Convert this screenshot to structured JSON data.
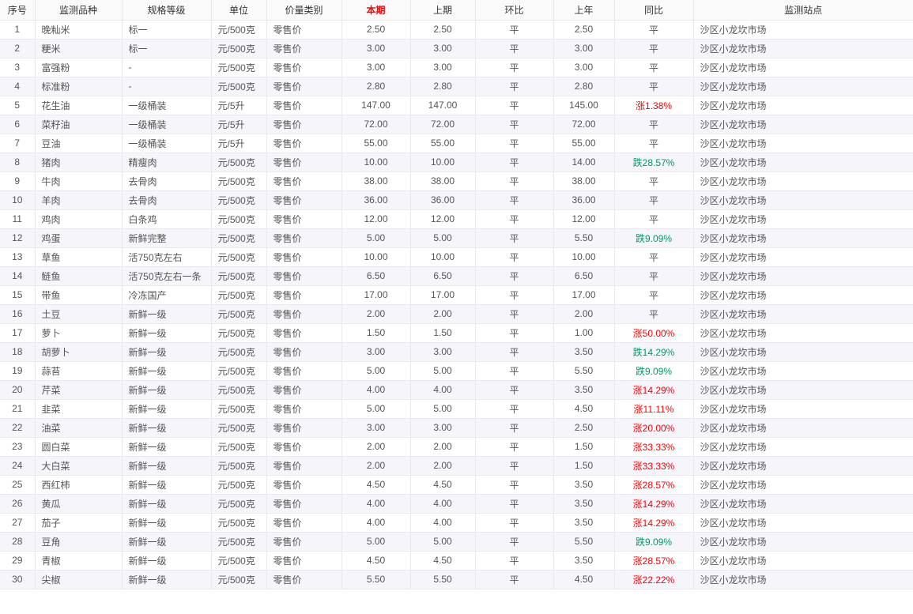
{
  "colors": {
    "up": "#ff0000",
    "down": "#009966",
    "border": "#e9e9e9",
    "row_alt_bg": "#f6f5fb",
    "header_bg": "#fafafa",
    "text": "#555555",
    "header_text": "#333333"
  },
  "table": {
    "columns": [
      {
        "key": "index",
        "label": "序号"
      },
      {
        "key": "variety",
        "label": "监测品种"
      },
      {
        "key": "spec",
        "label": "规格等级"
      },
      {
        "key": "unit",
        "label": "单位"
      },
      {
        "key": "price_type",
        "label": "价量类别"
      },
      {
        "key": "current",
        "label": "本期",
        "highlight": true
      },
      {
        "key": "previous",
        "label": "上期"
      },
      {
        "key": "mom",
        "label": "环比"
      },
      {
        "key": "last_year",
        "label": "上年"
      },
      {
        "key": "yoy",
        "label": "同比"
      },
      {
        "key": "station",
        "label": "监测站点"
      }
    ],
    "rows": [
      [
        "1",
        "晚籼米",
        "标一",
        "元/500克",
        "零售价",
        "2.50",
        "2.50",
        "平",
        "2.50",
        "平",
        "沙区小龙坎市场"
      ],
      [
        "2",
        "粳米",
        "标一",
        "元/500克",
        "零售价",
        "3.00",
        "3.00",
        "平",
        "3.00",
        "平",
        "沙区小龙坎市场"
      ],
      [
        "3",
        "富强粉",
        "-",
        "元/500克",
        "零售价",
        "3.00",
        "3.00",
        "平",
        "3.00",
        "平",
        "沙区小龙坎市场"
      ],
      [
        "4",
        "标准粉",
        "-",
        "元/500克",
        "零售价",
        "2.80",
        "2.80",
        "平",
        "2.80",
        "平",
        "沙区小龙坎市场"
      ],
      [
        "5",
        "花生油",
        "一级桶装",
        "元/5升",
        "零售价",
        "147.00",
        "147.00",
        "平",
        "145.00",
        "涨1.38%",
        "沙区小龙坎市场"
      ],
      [
        "6",
        "菜籽油",
        "一级桶装",
        "元/5升",
        "零售价",
        "72.00",
        "72.00",
        "平",
        "72.00",
        "平",
        "沙区小龙坎市场"
      ],
      [
        "7",
        "豆油",
        "一级桶装",
        "元/5升",
        "零售价",
        "55.00",
        "55.00",
        "平",
        "55.00",
        "平",
        "沙区小龙坎市场"
      ],
      [
        "8",
        "猪肉",
        "精瘦肉",
        "元/500克",
        "零售价",
        "10.00",
        "10.00",
        "平",
        "14.00",
        "跌28.57%",
        "沙区小龙坎市场"
      ],
      [
        "9",
        "牛肉",
        "去骨肉",
        "元/500克",
        "零售价",
        "38.00",
        "38.00",
        "平",
        "38.00",
        "平",
        "沙区小龙坎市场"
      ],
      [
        "10",
        "羊肉",
        "去骨肉",
        "元/500克",
        "零售价",
        "36.00",
        "36.00",
        "平",
        "36.00",
        "平",
        "沙区小龙坎市场"
      ],
      [
        "11",
        "鸡肉",
        "白条鸡",
        "元/500克",
        "零售价",
        "12.00",
        "12.00",
        "平",
        "12.00",
        "平",
        "沙区小龙坎市场"
      ],
      [
        "12",
        "鸡蛋",
        "新鲜完整",
        "元/500克",
        "零售价",
        "5.00",
        "5.00",
        "平",
        "5.50",
        "跌9.09%",
        "沙区小龙坎市场"
      ],
      [
        "13",
        "草鱼",
        "活750克左右",
        "元/500克",
        "零售价",
        "10.00",
        "10.00",
        "平",
        "10.00",
        "平",
        "沙区小龙坎市场"
      ],
      [
        "14",
        "鲢鱼",
        "活750克左右一条",
        "元/500克",
        "零售价",
        "6.50",
        "6.50",
        "平",
        "6.50",
        "平",
        "沙区小龙坎市场"
      ],
      [
        "15",
        "带鱼",
        "冷冻国产",
        "元/500克",
        "零售价",
        "17.00",
        "17.00",
        "平",
        "17.00",
        "平",
        "沙区小龙坎市场"
      ],
      [
        "16",
        "土豆",
        "新鲜一级",
        "元/500克",
        "零售价",
        "2.00",
        "2.00",
        "平",
        "2.00",
        "平",
        "沙区小龙坎市场"
      ],
      [
        "17",
        "萝卜",
        "新鲜一级",
        "元/500克",
        "零售价",
        "1.50",
        "1.50",
        "平",
        "1.00",
        "涨50.00%",
        "沙区小龙坎市场"
      ],
      [
        "18",
        "胡萝卜",
        "新鲜一级",
        "元/500克",
        "零售价",
        "3.00",
        "3.00",
        "平",
        "3.50",
        "跌14.29%",
        "沙区小龙坎市场"
      ],
      [
        "19",
        "蒜苔",
        "新鲜一级",
        "元/500克",
        "零售价",
        "5.00",
        "5.00",
        "平",
        "5.50",
        "跌9.09%",
        "沙区小龙坎市场"
      ],
      [
        "20",
        "芹菜",
        "新鲜一级",
        "元/500克",
        "零售价",
        "4.00",
        "4.00",
        "平",
        "3.50",
        "涨14.29%",
        "沙区小龙坎市场"
      ],
      [
        "21",
        "韭菜",
        "新鲜一级",
        "元/500克",
        "零售价",
        "5.00",
        "5.00",
        "平",
        "4.50",
        "涨11.11%",
        "沙区小龙坎市场"
      ],
      [
        "22",
        "油菜",
        "新鲜一级",
        "元/500克",
        "零售价",
        "3.00",
        "3.00",
        "平",
        "2.50",
        "涨20.00%",
        "沙区小龙坎市场"
      ],
      [
        "23",
        "圆白菜",
        "新鲜一级",
        "元/500克",
        "零售价",
        "2.00",
        "2.00",
        "平",
        "1.50",
        "涨33.33%",
        "沙区小龙坎市场"
      ],
      [
        "24",
        "大白菜",
        "新鲜一级",
        "元/500克",
        "零售价",
        "2.00",
        "2.00",
        "平",
        "1.50",
        "涨33.33%",
        "沙区小龙坎市场"
      ],
      [
        "25",
        "西红柿",
        "新鲜一级",
        "元/500克",
        "零售价",
        "4.50",
        "4.50",
        "平",
        "3.50",
        "涨28.57%",
        "沙区小龙坎市场"
      ],
      [
        "26",
        "黄瓜",
        "新鲜一级",
        "元/500克",
        "零售价",
        "4.00",
        "4.00",
        "平",
        "3.50",
        "涨14.29%",
        "沙区小龙坎市场"
      ],
      [
        "27",
        "茄子",
        "新鲜一级",
        "元/500克",
        "零售价",
        "4.00",
        "4.00",
        "平",
        "3.50",
        "涨14.29%",
        "沙区小龙坎市场"
      ],
      [
        "28",
        "豆角",
        "新鲜一级",
        "元/500克",
        "零售价",
        "5.00",
        "5.00",
        "平",
        "5.50",
        "跌9.09%",
        "沙区小龙坎市场"
      ],
      [
        "29",
        "青椒",
        "新鲜一级",
        "元/500克",
        "零售价",
        "4.50",
        "4.50",
        "平",
        "3.50",
        "涨28.57%",
        "沙区小龙坎市场"
      ],
      [
        "30",
        "尖椒",
        "新鲜一级",
        "元/500克",
        "零售价",
        "5.50",
        "5.50",
        "平",
        "4.50",
        "涨22.22%",
        "沙区小龙坎市场"
      ]
    ]
  }
}
